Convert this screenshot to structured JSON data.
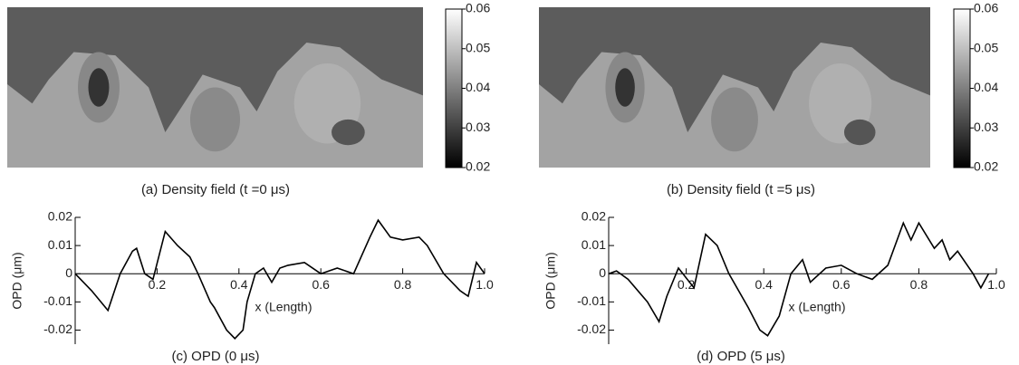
{
  "chart_data": [
    {
      "type": "heatmap",
      "title": "(a) Density field (t =0 μs)",
      "clim": [
        0.02,
        0.06
      ],
      "cticks": [
        0.02,
        0.03,
        0.04,
        0.05,
        0.06
      ],
      "colors": [
        "#000000",
        "#ffffff"
      ]
    },
    {
      "type": "heatmap",
      "title": "(b) Density field (t =5 μs)",
      "clim": [
        0.02,
        0.06
      ],
      "cticks": [
        0.02,
        0.03,
        0.04,
        0.05,
        0.06
      ],
      "colors": [
        "#000000",
        "#ffffff"
      ]
    },
    {
      "type": "line",
      "title": "(c) OPD (0 μs)",
      "x_label": "x (Length)",
      "y_label": "OPD (μm)",
      "color": "#000000",
      "x": [
        0,
        0.04,
        0.08,
        0.11,
        0.14,
        0.15,
        0.17,
        0.19,
        0.22,
        0.25,
        0.28,
        0.3,
        0.33,
        0.34,
        0.37,
        0.39,
        0.41,
        0.42,
        0.44,
        0.46,
        0.48,
        0.5,
        0.52,
        0.56,
        0.6,
        0.64,
        0.68,
        0.72,
        0.74,
        0.77,
        0.8,
        0.84,
        0.86,
        0.9,
        0.94,
        0.96,
        0.98,
        1.0
      ],
      "values": [
        0,
        -0.006,
        -0.013,
        0,
        0.008,
        0.009,
        0,
        -0.002,
        0.015,
        0.01,
        0.006,
        0,
        -0.01,
        -0.012,
        -0.02,
        -0.023,
        -0.02,
        -0.01,
        0,
        0.002,
        -0.003,
        0.002,
        0.003,
        0.004,
        0,
        0.002,
        0,
        0.013,
        0.019,
        0.013,
        0.012,
        0.013,
        0.01,
        0,
        -0.006,
        -0.008,
        0.004,
        0
      ],
      "xlim": [
        0,
        1.0
      ],
      "ylim": [
        -0.025,
        0.02
      ],
      "xticks": [
        0.2,
        0.4,
        0.6,
        0.8,
        {
          "value": 1,
          "label": "1.0"
        }
      ],
      "yticks": [
        0.02,
        0.01,
        0,
        -0.01,
        -0.02
      ]
    },
    {
      "type": "line",
      "title": "(d) OPD (5 μs)",
      "x_label": "x (Length)",
      "y_label": "OPD (μm)",
      "color": "#000000",
      "x": [
        0,
        0.02,
        0.05,
        0.1,
        0.13,
        0.15,
        0.18,
        0.22,
        0.25,
        0.28,
        0.31,
        0.36,
        0.39,
        0.41,
        0.44,
        0.47,
        0.5,
        0.52,
        0.56,
        0.6,
        0.64,
        0.68,
        0.72,
        0.76,
        0.78,
        0.8,
        0.84,
        0.86,
        0.88,
        0.9,
        0.94,
        0.96,
        0.98
      ],
      "values": [
        0,
        0.001,
        -0.002,
        -0.01,
        -0.017,
        -0.008,
        0.002,
        -0.005,
        0.014,
        0.01,
        0,
        -0.012,
        -0.02,
        -0.022,
        -0.015,
        0,
        0.005,
        -0.003,
        0.002,
        0.003,
        0,
        -0.002,
        0.003,
        0.018,
        0.012,
        0.018,
        0.009,
        0.012,
        0.005,
        0.008,
        0,
        -0.005,
        0
      ],
      "xlim": [
        0,
        1.0
      ],
      "ylim": [
        -0.025,
        0.02
      ],
      "xticks": [
        0.2,
        0.4,
        0.6,
        0.8,
        {
          "value": 1,
          "label": "1.0"
        }
      ],
      "yticks": [
        0.02,
        0.01,
        0,
        -0.01,
        -0.02
      ]
    }
  ]
}
